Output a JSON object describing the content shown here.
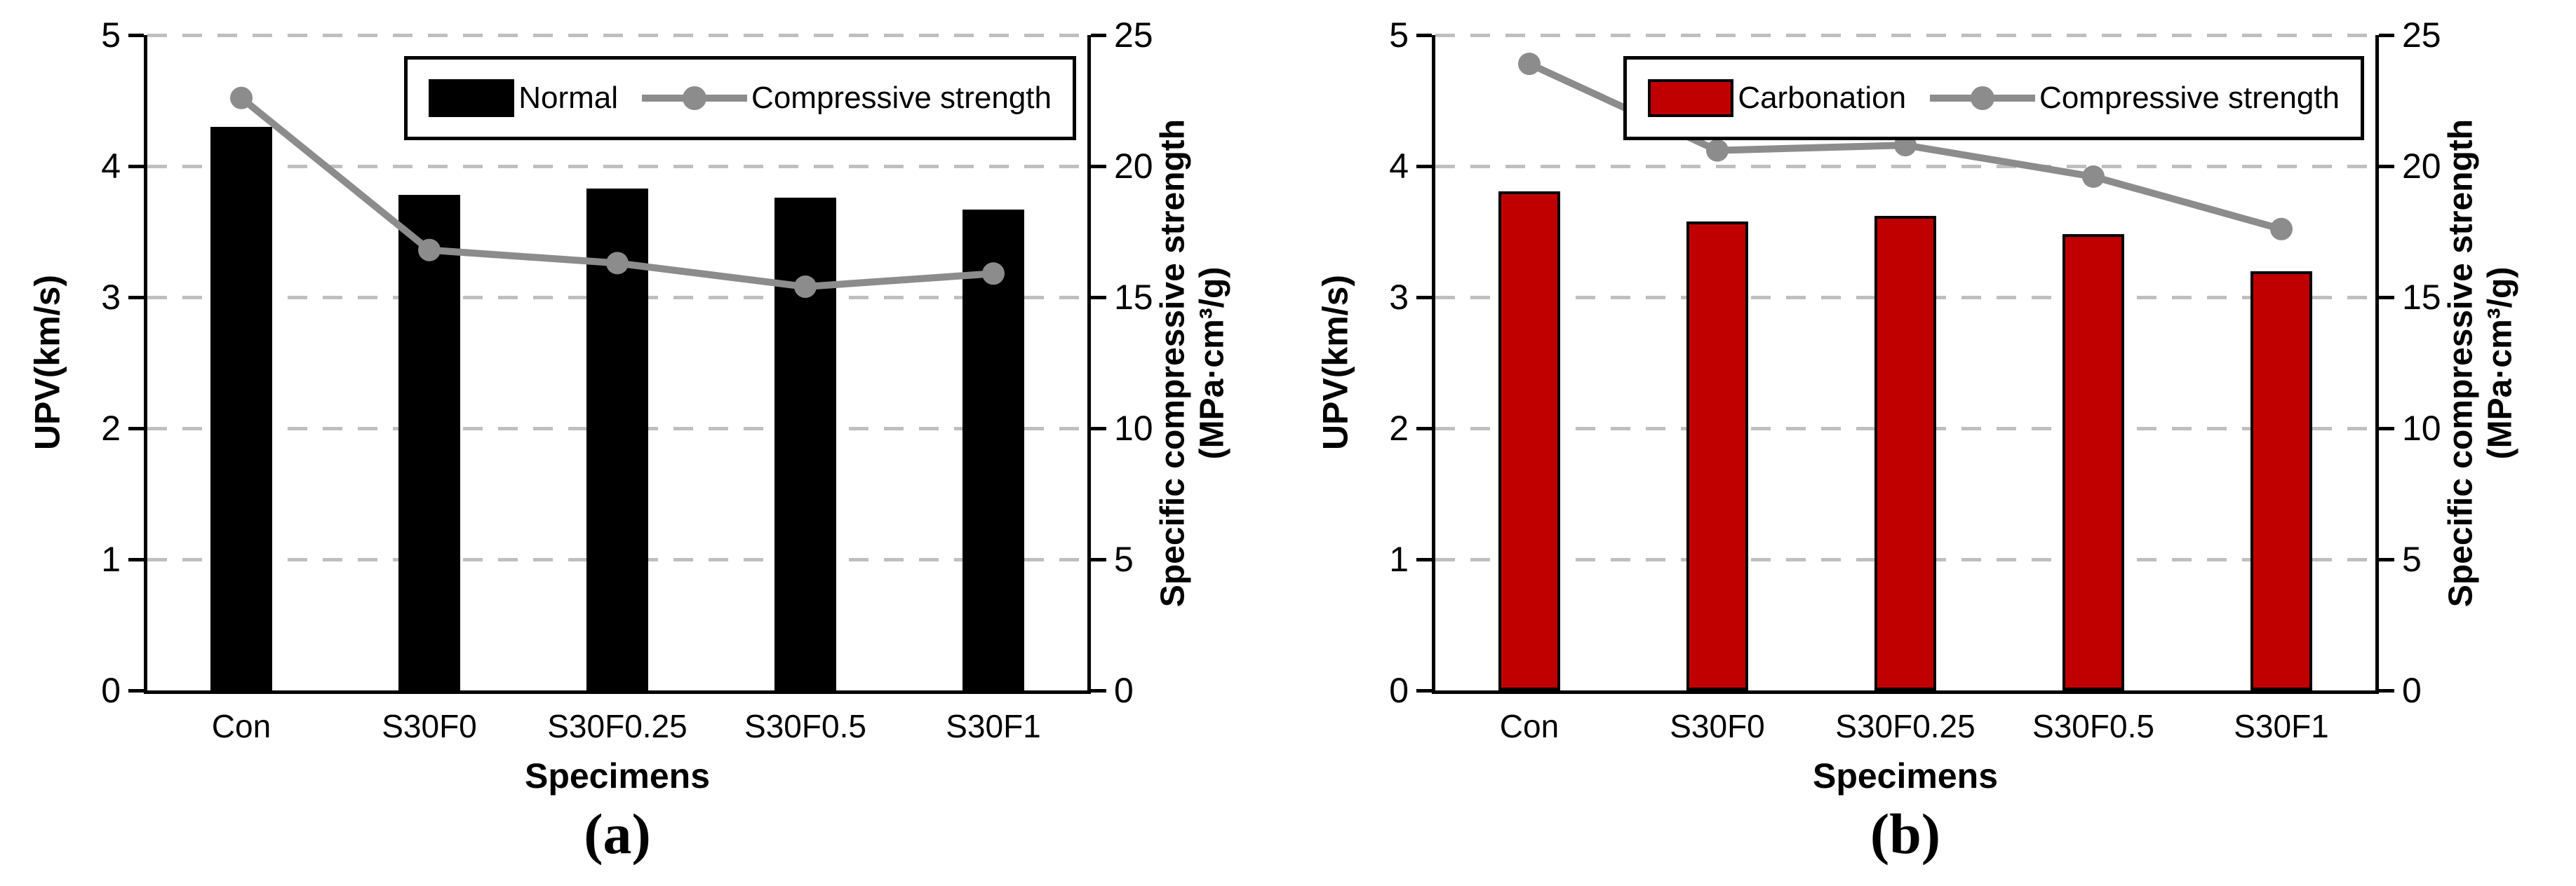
{
  "figure": {
    "background": "#ffffff"
  },
  "chart_data": [
    {
      "type": "bar+line",
      "caption": "(a)",
      "categories": [
        "Con",
        "S30F0",
        "S30F0.25",
        "S30F0.5",
        "S30F1"
      ],
      "xlabel": "Specimens",
      "left_axis": {
        "title": "UPV(km/s)",
        "min": 0,
        "max": 5,
        "ticks": [
          0,
          1,
          2,
          3,
          4,
          5
        ]
      },
      "right_axis": {
        "title_lines": [
          "Specific compressive strength",
          "(MPa·cm³/g)"
        ],
        "min": 0,
        "max": 25,
        "ticks": [
          0,
          5,
          10,
          15,
          20,
          25
        ]
      },
      "grid": "horizontal-dashed",
      "legend_position": "top-right-inside",
      "series": [
        {
          "name": "Normal",
          "type": "bar",
          "axis": "left",
          "color": "#000000",
          "values": [
            4.3,
            3.78,
            3.83,
            3.76,
            3.67
          ]
        },
        {
          "name": "Compressive strength",
          "type": "line",
          "axis": "right",
          "color": "#8C8C8C",
          "marker": "circle",
          "values": [
            22.6,
            16.8,
            16.3,
            15.4,
            15.9
          ]
        }
      ],
      "colors": {
        "grid": "#BFBFBF",
        "axis": "#000000"
      }
    },
    {
      "type": "bar+line",
      "caption": "(b)",
      "categories": [
        "Con",
        "S30F0",
        "S30F0.25",
        "S30F0.5",
        "S30F1"
      ],
      "xlabel": "Specimens",
      "left_axis": {
        "title": "UPV(km/s)",
        "min": 0,
        "max": 5,
        "ticks": [
          0,
          1,
          2,
          3,
          4,
          5
        ]
      },
      "right_axis": {
        "title_lines": [
          "Specific compressive strength",
          "(MPa·cm³/g)"
        ],
        "min": 0,
        "max": 25,
        "ticks": [
          0,
          5,
          10,
          15,
          20,
          25
        ]
      },
      "grid": "horizontal-dashed",
      "legend_position": "top-right-inside",
      "series": [
        {
          "name": "Carbonation",
          "type": "bar",
          "axis": "left",
          "color": "#C00000",
          "values": [
            3.81,
            3.58,
            3.62,
            3.48,
            3.2
          ]
        },
        {
          "name": "Compressive strength",
          "type": "line",
          "axis": "right",
          "color": "#8C8C8C",
          "marker": "circle",
          "values": [
            23.9,
            20.6,
            20.8,
            19.6,
            17.6
          ]
        }
      ],
      "colors": {
        "grid": "#BFBFBF",
        "axis": "#000000"
      }
    }
  ]
}
